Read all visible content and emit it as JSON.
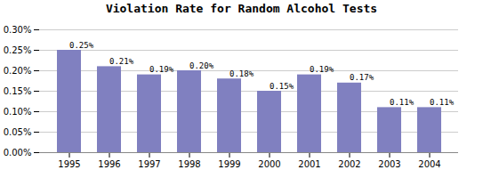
{
  "chart_data": {
    "type": "bar",
    "title": "Violation Rate for Random Alcohol Tests",
    "categories": [
      "1995",
      "1996",
      "1997",
      "1998",
      "1999",
      "2000",
      "2001",
      "2002",
      "2003",
      "2004"
    ],
    "values": [
      0.0025,
      0.0021,
      0.0019,
      0.002,
      0.0018,
      0.0015,
      0.0019,
      0.0017,
      0.0011,
      0.0011
    ],
    "value_labels": [
      "0.25%",
      "0.21%",
      "0.19%",
      "0.20%",
      "0.18%",
      "0.15%",
      "0.19%",
      "0.17%",
      "0.11%",
      "0.11%"
    ],
    "data_labels": true,
    "color": "#8080c0",
    "ylim": [
      0,
      0.003
    ],
    "yticks": [
      {
        "value": 0.0,
        "label": "0.00%"
      },
      {
        "value": 0.0005,
        "label": "0.05%"
      },
      {
        "value": 0.001,
        "label": "0.10%"
      },
      {
        "value": 0.0015,
        "label": "0.15%"
      },
      {
        "value": 0.002,
        "label": "0.20%"
      },
      {
        "value": 0.0025,
        "label": "0.25%"
      },
      {
        "value": 0.003,
        "label": "0.30%"
      }
    ],
    "grid": true
  }
}
